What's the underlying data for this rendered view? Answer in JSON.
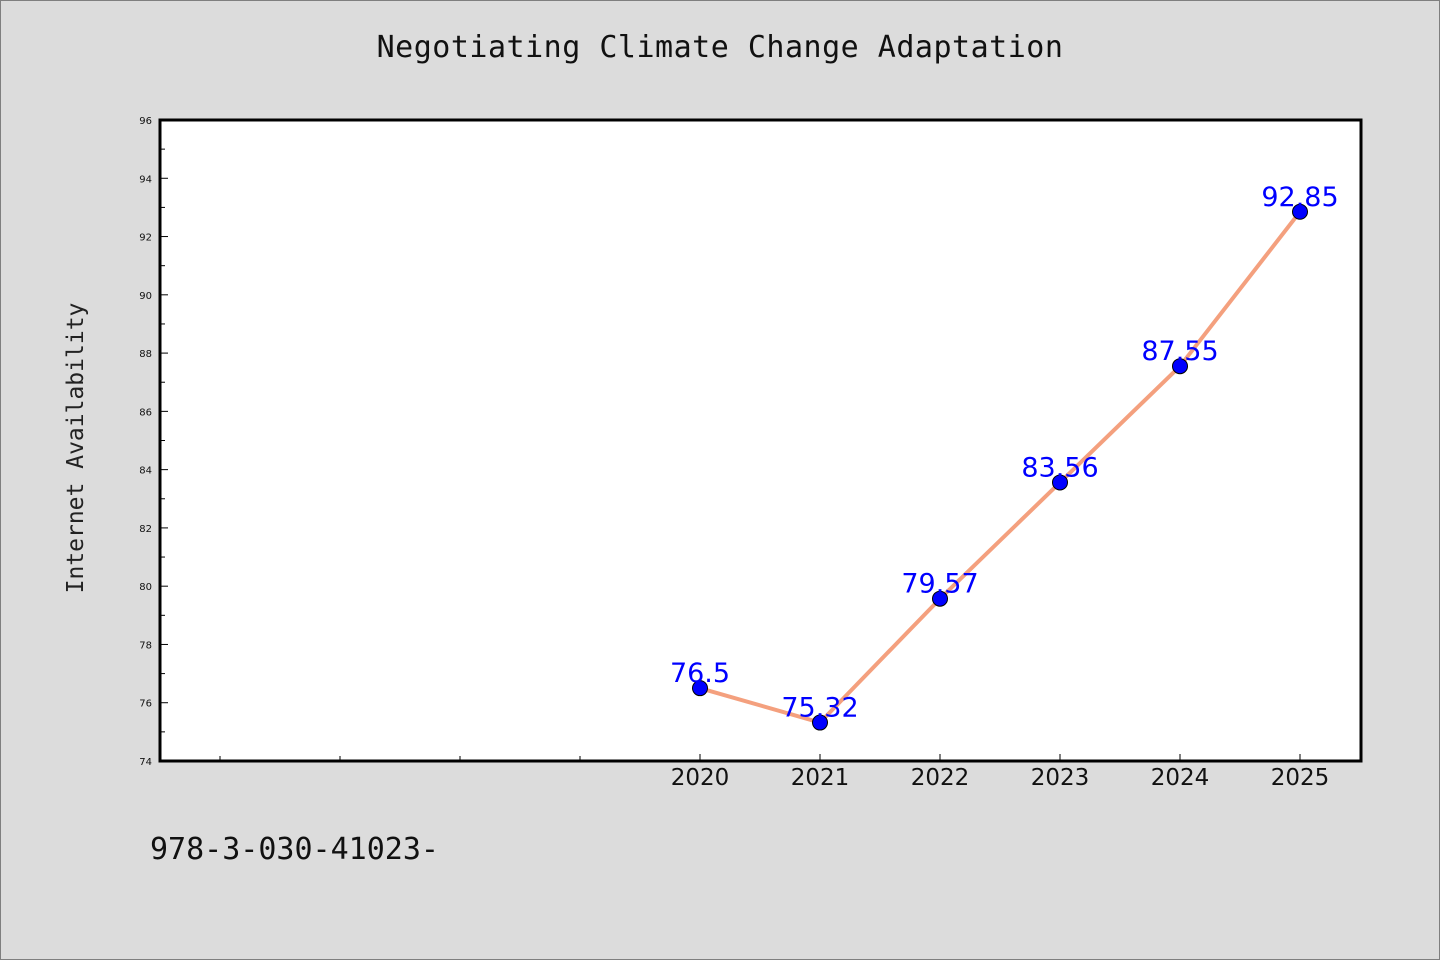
{
  "colors": {
    "background": "#dcdcdc",
    "plot_area": "#ffffff",
    "line": "#f4a07e",
    "marker": "#0000ff",
    "label": "#0000ff"
  },
  "footer": {
    "text": "978-3-030-41023-"
  },
  "chart_data": {
    "type": "line",
    "title": "Negotiating Climate Change Adaptation",
    "xlabel": "",
    "ylabel": "Internet Availability",
    "x": [
      "2020",
      "2021",
      "2022",
      "2023",
      "2024",
      "2025"
    ],
    "series": [
      {
        "values": [
          76.5,
          75.32,
          79.57,
          83.56,
          87.55,
          92.85
        ]
      }
    ],
    "data_labels": [
      "76.5",
      "75.32",
      "79.57",
      "83.56",
      "87.55",
      "92.85"
    ],
    "ylim": [
      74,
      96
    ],
    "yticks": [
      74,
      76,
      78,
      80,
      82,
      84,
      86,
      88,
      90,
      92,
      94,
      96
    ],
    "grid": false,
    "legend": "none"
  }
}
